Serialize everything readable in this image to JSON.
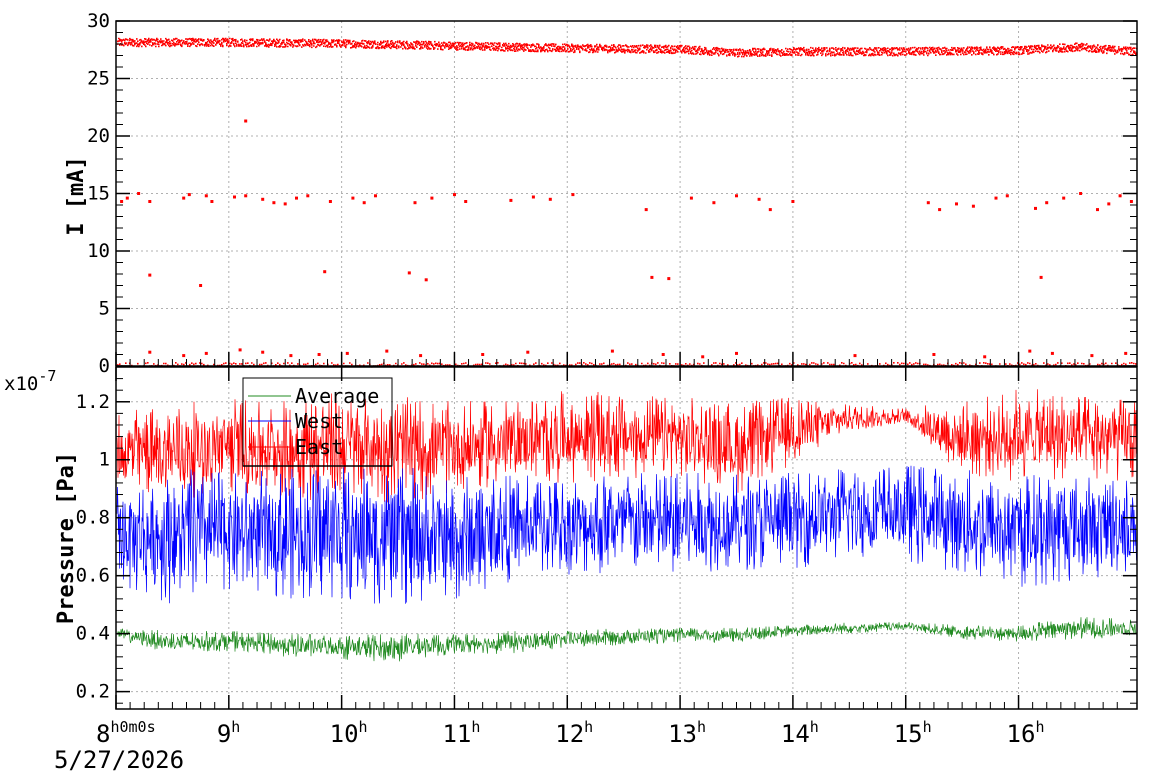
{
  "chart_data": [
    {
      "type": "scatter",
      "panel": "top",
      "title": "",
      "ylabel": "I [mA]",
      "xlabel": "",
      "ylim": [
        0,
        30
      ],
      "yticks": [
        0,
        5,
        10,
        15,
        20,
        25,
        30
      ],
      "xlim_hours": [
        8.0,
        17.05
      ],
      "grid": true,
      "series": [
        {
          "color": "#ff0000",
          "baseline_segments": [
            [
              8.0,
              28.2
            ],
            [
              9.0,
              28.2
            ],
            [
              10.0,
              28.1
            ],
            [
              11.0,
              27.9
            ],
            [
              12.0,
              27.7
            ],
            [
              13.0,
              27.6
            ],
            [
              13.5,
              27.3
            ],
            [
              14.0,
              27.4
            ],
            [
              15.0,
              27.4
            ],
            [
              16.0,
              27.5
            ],
            [
              16.5,
              27.8
            ],
            [
              17.05,
              27.4
            ]
          ],
          "outliers": [
            [
              9.15,
              21.3
            ],
            [
              8.3,
              7.9
            ],
            [
              8.75,
              7.0
            ],
            [
              9.85,
              8.2
            ],
            [
              10.6,
              8.1
            ],
            [
              10.75,
              7.5
            ],
            [
              12.75,
              7.7
            ],
            [
              12.9,
              7.6
            ],
            [
              16.2,
              7.7
            ],
            [
              8.05,
              14.3
            ],
            [
              8.1,
              14.6
            ],
            [
              8.2,
              15.0
            ],
            [
              8.3,
              14.3
            ],
            [
              8.6,
              14.6
            ],
            [
              8.65,
              14.9
            ],
            [
              8.8,
              14.8
            ],
            [
              8.85,
              14.3
            ],
            [
              9.05,
              14.7
            ],
            [
              9.15,
              14.8
            ],
            [
              9.3,
              14.5
            ],
            [
              9.4,
              14.2
            ],
            [
              9.5,
              14.1
            ],
            [
              9.6,
              14.6
            ],
            [
              9.7,
              14.8
            ],
            [
              9.9,
              14.3
            ],
            [
              10.1,
              14.6
            ],
            [
              10.2,
              14.2
            ],
            [
              10.3,
              14.8
            ],
            [
              10.65,
              14.2
            ],
            [
              10.8,
              14.6
            ],
            [
              11.0,
              14.9
            ],
            [
              11.1,
              14.3
            ],
            [
              11.5,
              14.4
            ],
            [
              11.7,
              14.7
            ],
            [
              11.85,
              14.5
            ],
            [
              12.05,
              14.9
            ],
            [
              12.7,
              13.6
            ],
            [
              13.1,
              14.6
            ],
            [
              13.3,
              14.2
            ],
            [
              13.5,
              14.8
            ],
            [
              13.7,
              14.5
            ],
            [
              13.8,
              13.6
            ],
            [
              14.0,
              14.3
            ],
            [
              15.2,
              14.2
            ],
            [
              15.3,
              13.6
            ],
            [
              15.45,
              14.1
            ],
            [
              15.6,
              13.9
            ],
            [
              15.8,
              14.6
            ],
            [
              15.9,
              14.8
            ],
            [
              16.15,
              13.7
            ],
            [
              16.25,
              14.2
            ],
            [
              16.4,
              14.6
            ],
            [
              16.55,
              15.0
            ],
            [
              16.7,
              13.6
            ],
            [
              16.8,
              14.1
            ],
            [
              16.9,
              14.8
            ],
            [
              17.0,
              14.3
            ],
            [
              8.3,
              1.2
            ],
            [
              8.6,
              0.9
            ],
            [
              8.8,
              1.1
            ],
            [
              9.1,
              1.4
            ],
            [
              9.3,
              1.2
            ],
            [
              9.55,
              0.9
            ],
            [
              9.8,
              1.0
            ],
            [
              10.05,
              1.1
            ],
            [
              10.4,
              1.3
            ],
            [
              10.7,
              0.9
            ],
            [
              11.25,
              1.0
            ],
            [
              11.65,
              1.2
            ],
            [
              12.4,
              1.3
            ],
            [
              12.85,
              1.0
            ],
            [
              13.2,
              0.8
            ],
            [
              13.5,
              1.1
            ],
            [
              14.55,
              0.9
            ],
            [
              15.25,
              1.0
            ],
            [
              15.7,
              0.8
            ],
            [
              16.1,
              1.3
            ],
            [
              16.3,
              1.1
            ],
            [
              16.65,
              0.9
            ],
            [
              16.95,
              1.1
            ]
          ]
        }
      ]
    },
    {
      "type": "line",
      "panel": "bottom",
      "title": "",
      "ylabel": "Pressure [Pa]",
      "xlabel": "",
      "exponent_label": "x10",
      "exponent_power": "-7",
      "ylim": [
        0.14,
        1.32
      ],
      "yticks": [
        0.2,
        0.4,
        0.6,
        0.8,
        1.0,
        1.2
      ],
      "ytick_labels": [
        "0.2",
        "0.4",
        "0.6",
        "0.8",
        "1",
        "1.2"
      ],
      "xlim_hours": [
        8.0,
        17.05
      ],
      "grid": true,
      "legend_position": "top-left",
      "series": [
        {
          "name": "Average",
          "color": "#228b22",
          "envelope": [
            [
              8.0,
              0.38,
              0.42
            ],
            [
              8.5,
              0.33,
              0.41
            ],
            [
              9.0,
              0.34,
              0.41
            ],
            [
              9.5,
              0.32,
              0.4
            ],
            [
              10.0,
              0.31,
              0.4
            ],
            [
              10.5,
              0.3,
              0.4
            ],
            [
              11.0,
              0.33,
              0.4
            ],
            [
              11.5,
              0.33,
              0.41
            ],
            [
              12.0,
              0.35,
              0.41
            ],
            [
              12.5,
              0.36,
              0.42
            ],
            [
              13.0,
              0.37,
              0.42
            ],
            [
              13.5,
              0.37,
              0.42
            ],
            [
              14.0,
              0.39,
              0.43
            ],
            [
              14.5,
              0.4,
              0.44
            ],
            [
              15.0,
              0.41,
              0.44
            ],
            [
              15.5,
              0.38,
              0.43
            ],
            [
              16.0,
              0.37,
              0.43
            ],
            [
              16.5,
              0.38,
              0.46
            ],
            [
              17.05,
              0.39,
              0.45
            ]
          ]
        },
        {
          "name": "West",
          "color": "#0000ff",
          "envelope": [
            [
              8.0,
              0.55,
              0.92
            ],
            [
              8.5,
              0.5,
              0.97
            ],
            [
              9.0,
              0.55,
              0.96
            ],
            [
              9.5,
              0.52,
              0.97
            ],
            [
              10.0,
              0.51,
              0.98
            ],
            [
              10.5,
              0.49,
              0.98
            ],
            [
              11.0,
              0.5,
              0.95
            ],
            [
              11.5,
              0.58,
              0.95
            ],
            [
              12.0,
              0.6,
              0.95
            ],
            [
              12.5,
              0.6,
              0.96
            ],
            [
              13.0,
              0.6,
              0.96
            ],
            [
              13.5,
              0.62,
              0.95
            ],
            [
              14.0,
              0.62,
              0.97
            ],
            [
              14.5,
              0.66,
              0.98
            ],
            [
              15.0,
              0.65,
              0.99
            ],
            [
              15.5,
              0.59,
              0.97
            ],
            [
              16.0,
              0.55,
              0.96
            ],
            [
              16.5,
              0.58,
              0.95
            ],
            [
              17.05,
              0.6,
              0.95
            ]
          ]
        },
        {
          "name": "East",
          "color": "#ff0000",
          "envelope": [
            [
              8.0,
              0.88,
              1.17
            ],
            [
              8.5,
              0.86,
              1.19
            ],
            [
              9.0,
              0.88,
              1.22
            ],
            [
              9.5,
              0.86,
              1.21
            ],
            [
              10.0,
              0.86,
              1.24
            ],
            [
              10.5,
              0.85,
              1.22
            ],
            [
              11.0,
              0.88,
              1.2
            ],
            [
              11.5,
              0.92,
              1.21
            ],
            [
              12.0,
              0.92,
              1.24
            ],
            [
              12.5,
              0.93,
              1.23
            ],
            [
              13.0,
              0.94,
              1.22
            ],
            [
              13.5,
              0.88,
              1.2
            ],
            [
              14.0,
              0.98,
              1.22
            ],
            [
              14.5,
              1.1,
              1.19
            ],
            [
              15.0,
              1.12,
              1.18
            ],
            [
              15.5,
              0.94,
              1.21
            ],
            [
              16.0,
              0.92,
              1.25
            ],
            [
              16.5,
              0.93,
              1.23
            ],
            [
              17.05,
              0.92,
              1.21
            ]
          ]
        }
      ]
    }
  ],
  "x_axis": {
    "ticks": [
      {
        "hour": 8,
        "label": "8",
        "suffix": "h0m0s"
      },
      {
        "hour": 9,
        "label": "9",
        "suffix": "h"
      },
      {
        "hour": 10,
        "label": "10",
        "suffix": "h"
      },
      {
        "hour": 11,
        "label": "11",
        "suffix": "h"
      },
      {
        "hour": 12,
        "label": "12",
        "suffix": "h"
      },
      {
        "hour": 13,
        "label": "13",
        "suffix": "h"
      },
      {
        "hour": 14,
        "label": "14",
        "suffix": "h"
      },
      {
        "hour": 15,
        "label": "15",
        "suffix": "h"
      },
      {
        "hour": 16,
        "label": "16",
        "suffix": "h"
      }
    ],
    "date_label": "5/27/2026"
  }
}
